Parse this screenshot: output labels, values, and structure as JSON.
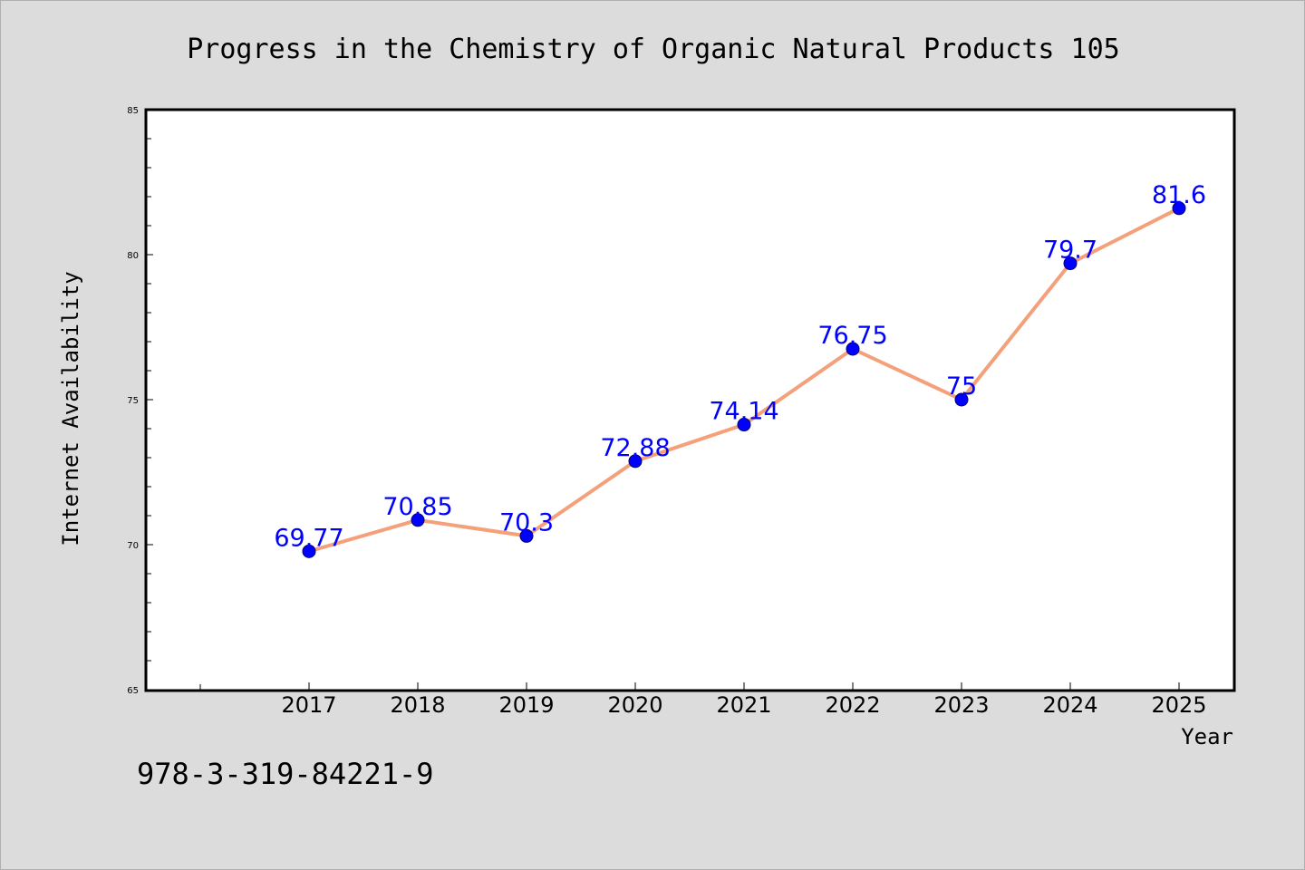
{
  "chart_data": {
    "type": "line",
    "title": "Progress in the Chemistry of Organic Natural Products 105",
    "xlabel": "Year",
    "ylabel": "Internet Availability",
    "categories": [
      "2017",
      "2018",
      "2019",
      "2020",
      "2021",
      "2022",
      "2023",
      "2024",
      "2025"
    ],
    "series": [
      {
        "values": [
          69.77,
          70.85,
          70.3,
          72.88,
          74.14,
          76.75,
          75,
          79.7,
          81.6
        ],
        "data_labels": [
          "69.77",
          "70.85",
          "70.3",
          "72.88",
          "74.14",
          "76.75",
          "75",
          "79.7",
          "81.6"
        ]
      }
    ],
    "ylim": [
      65,
      85
    ],
    "yticks": [
      "65",
      "70",
      "75",
      "80",
      "85"
    ],
    "grid": false,
    "legend": "none"
  },
  "footer": {
    "isbn": "978-3-319-84221-9"
  },
  "colors": {
    "background": "#dcdcdc",
    "plot_background": "#ffffff",
    "line": "#f4a07a",
    "marker": "#0000ff",
    "data_label": "#0000ff"
  }
}
